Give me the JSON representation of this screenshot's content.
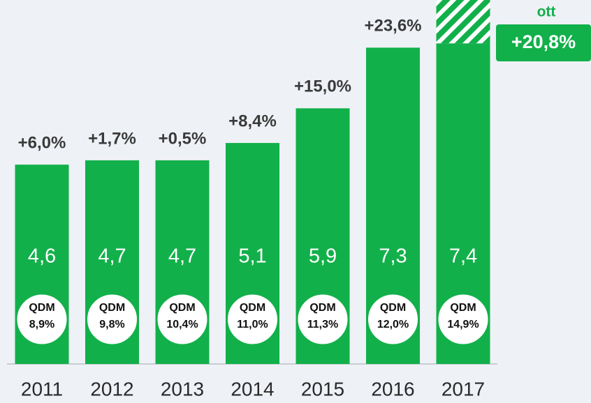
{
  "chart_data": {
    "type": "bar",
    "categories": [
      "2011",
      "2012",
      "2013",
      "2014",
      "2015",
      "2016",
      "2017"
    ],
    "values": [
      4.6,
      4.7,
      4.7,
      5.1,
      5.9,
      7.3,
      7.4
    ],
    "value_labels": [
      "4,6",
      "4,7",
      "4,7",
      "5,1",
      "5,9",
      "7,3",
      "7,4"
    ],
    "hatched_values": [
      null,
      null,
      null,
      null,
      null,
      null,
      1.0
    ],
    "growth_labels": [
      "+6,0%",
      "+1,7%",
      "+0,5%",
      "+8,4%",
      "+15,0%",
      "+23,6%",
      null
    ],
    "badge_title": "QDM",
    "badge_labels": [
      "8,9%",
      "9,8%",
      "10,4%",
      "11,0%",
      "11,3%",
      "12,0%",
      "14,9%"
    ],
    "annotation": {
      "title": "ott",
      "text": "+20,8%"
    },
    "color": "#12b04a",
    "ylim": [
      0,
      8.4
    ]
  }
}
